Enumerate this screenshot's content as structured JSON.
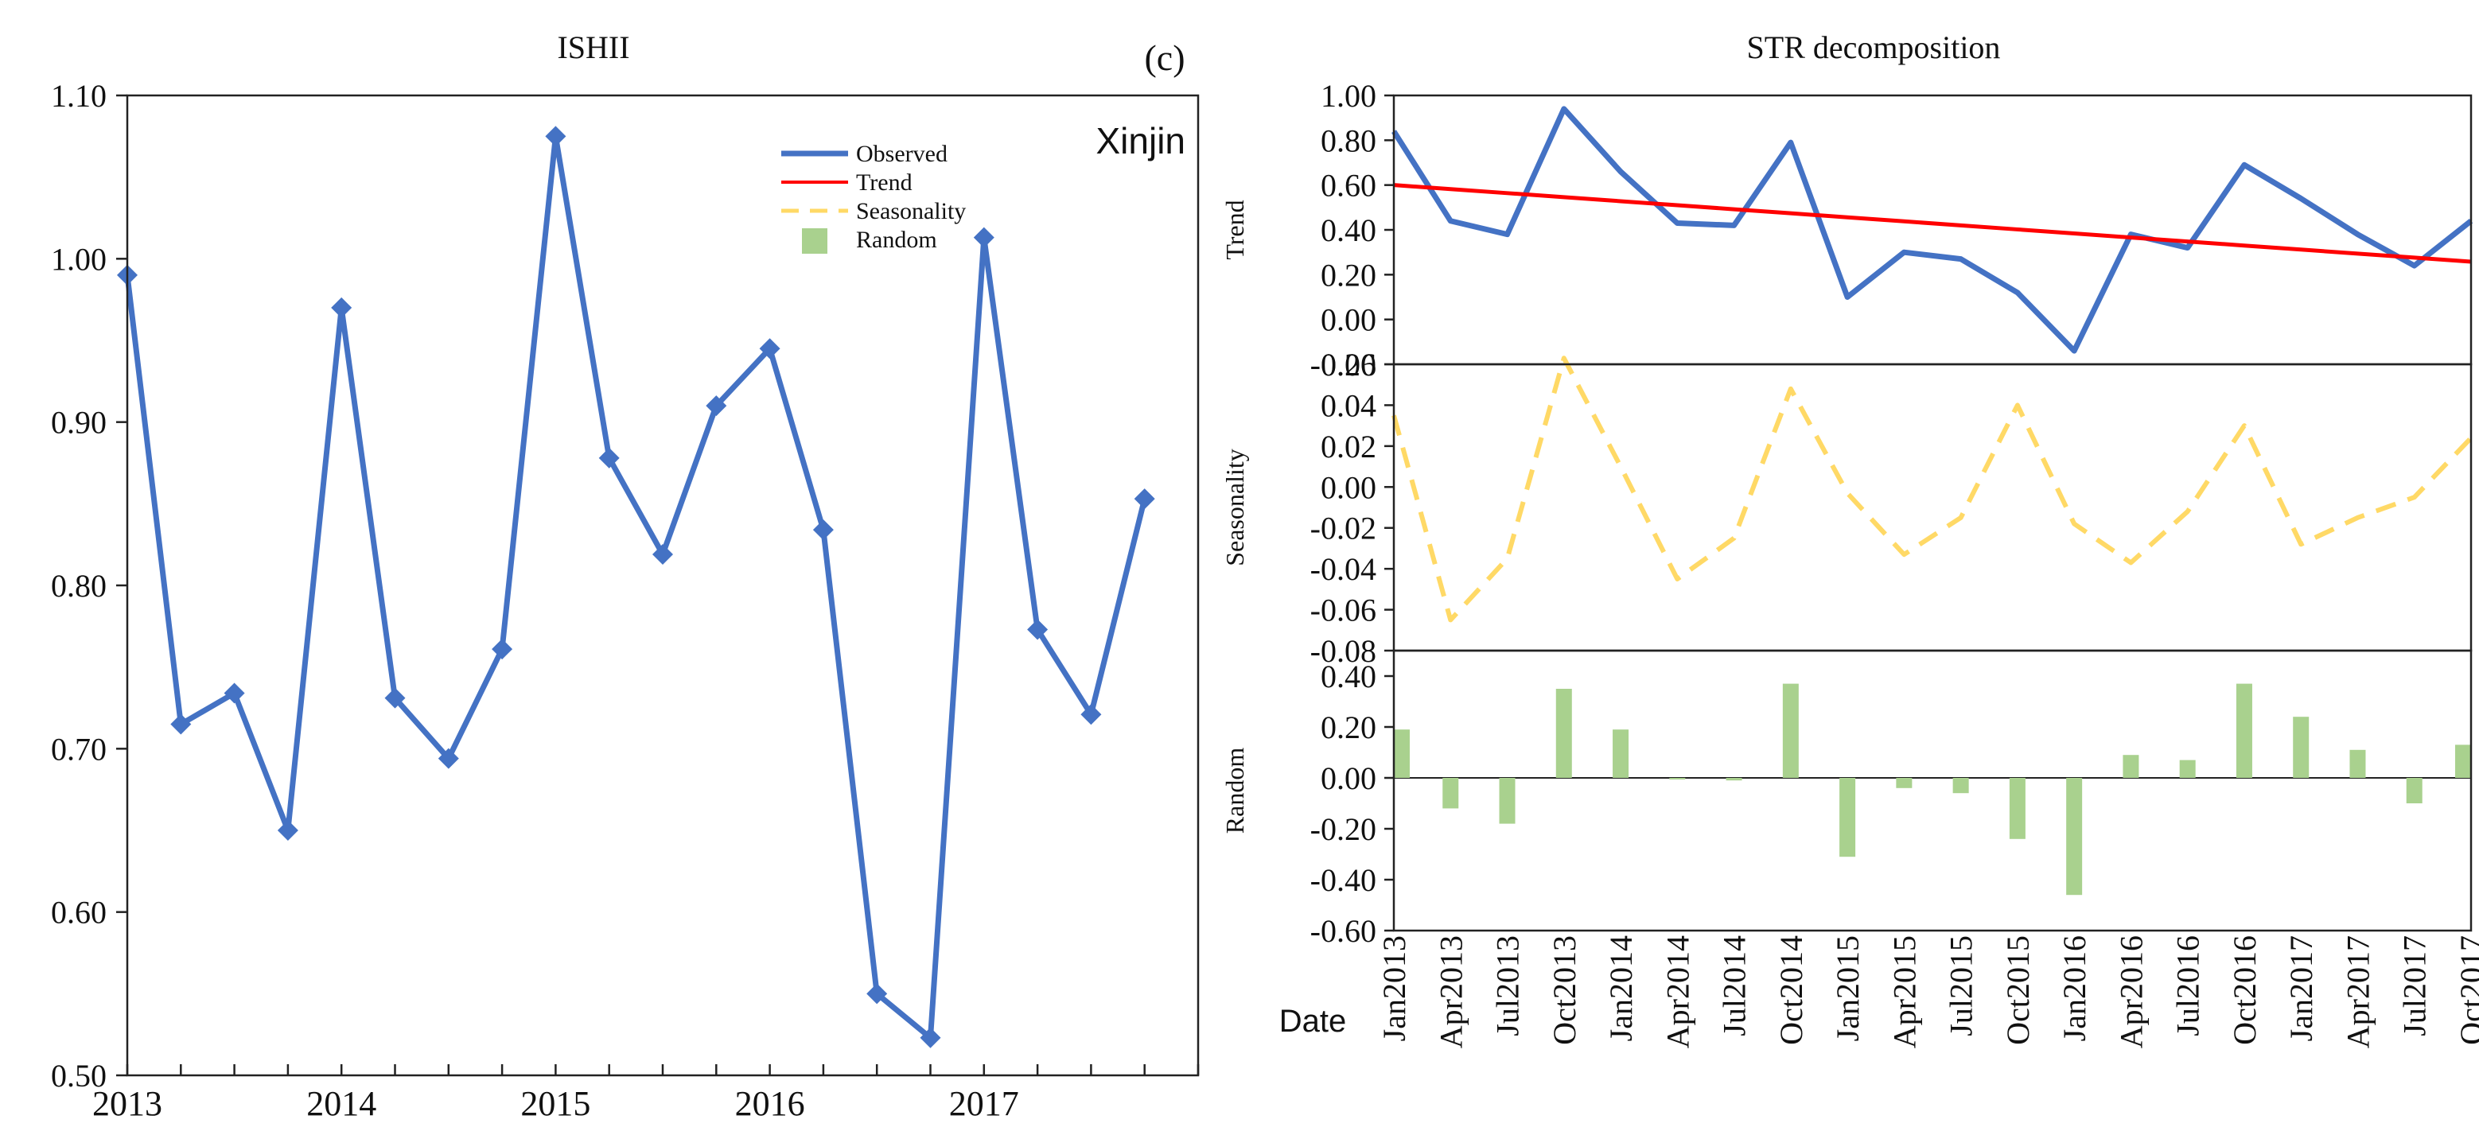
{
  "colors": {
    "observed": "#4472C4",
    "trend": "#FF0000",
    "seasonality": "#FFD966",
    "random": "#A9D18E",
    "panel_tag": "#E8212B",
    "axis": "#222222"
  },
  "chart_data": [
    {
      "id": "ishii",
      "type": "line",
      "title": "ISHII",
      "panel_tag": "(c)",
      "location_label": "Xinjin",
      "ylim": [
        0.5,
        1.1
      ],
      "yticks": [
        0.5,
        0.6,
        0.7,
        0.8,
        0.9,
        1.0,
        1.1
      ],
      "ytick_labels": [
        "0.50",
        "0.60",
        "0.70",
        "0.80",
        "0.90",
        "1.00",
        "1.10"
      ],
      "x_tick_labels": [
        "2013",
        "2014",
        "2015",
        "2016",
        "2017"
      ],
      "series": [
        {
          "name": "Observed",
          "marker": "diamond",
          "values": [
            0.99,
            0.715,
            0.734,
            0.65,
            0.97,
            0.731,
            0.694,
            0.761,
            1.075,
            0.878,
            0.819,
            0.91,
            0.945,
            0.834,
            0.55,
            0.523,
            1.013,
            0.773,
            0.721,
            0.853
          ]
        }
      ],
      "legend": [
        {
          "label": "Observed",
          "kind": "line"
        },
        {
          "label": "Trend",
          "kind": "line"
        },
        {
          "label": "Seasonality",
          "kind": "dashed"
        },
        {
          "label": "Random",
          "kind": "patch"
        }
      ]
    },
    {
      "id": "str",
      "type": "line",
      "title": "STR decomposition",
      "xlabel": "Date",
      "categories": [
        "Jan2013",
        "Apr2013",
        "Jul2013",
        "Oct2013",
        "Jan2014",
        "Apr2014",
        "Jul2014",
        "Oct2014",
        "Jan2015",
        "Apr2015",
        "Jul2015",
        "Oct2015",
        "Jan2016",
        "Apr2016",
        "Jul2016",
        "Oct2016",
        "Jan2017",
        "Apr2017",
        "Jul2017",
        "Oct2017"
      ],
      "panels": [
        {
          "ylabel": "Trend",
          "ylim": [
            -0.2,
            1.0
          ],
          "yticks": [
            -0.2,
            0.0,
            0.2,
            0.4,
            0.6,
            0.8,
            1.0
          ],
          "ytick_labels": [
            "-0.20",
            "0.00",
            "0.20",
            "0.40",
            "0.60",
            "0.80",
            "1.00"
          ],
          "series": [
            {
              "name": "Observed",
              "style": "solid",
              "values": [
                0.84,
                0.44,
                0.38,
                0.94,
                0.66,
                0.43,
                0.42,
                0.79,
                0.1,
                0.3,
                0.27,
                0.12,
                -0.14,
                0.38,
                0.32,
                0.69,
                0.54,
                0.38,
                0.24,
                0.44
              ]
            },
            {
              "name": "Trend",
              "style": "solid",
              "values": [
                0.6,
                0.582,
                0.564,
                0.546,
                0.528,
                0.51,
                0.492,
                0.474,
                0.456,
                0.438,
                0.42,
                0.402,
                0.384,
                0.366,
                0.348,
                0.33,
                0.312,
                0.294,
                0.276,
                0.258
              ]
            }
          ]
        },
        {
          "ylabel": "Seasonality",
          "ylim": [
            -0.08,
            0.06
          ],
          "yticks": [
            -0.08,
            -0.06,
            -0.04,
            -0.02,
            0.0,
            0.02,
            0.04,
            0.06
          ],
          "ytick_labels": [
            "-0.08",
            "-0.06",
            "-0.04",
            "-0.02",
            "0.00",
            "0.02",
            "0.04",
            "0.06"
          ],
          "series": [
            {
              "name": "Seasonality",
              "style": "dashed",
              "values": [
                0.035,
                -0.065,
                -0.035,
                0.063,
                0.01,
                -0.045,
                -0.025,
                0.048,
                -0.003,
                -0.033,
                -0.015,
                0.04,
                -0.018,
                -0.037,
                -0.012,
                0.03,
                -0.028,
                -0.015,
                -0.005,
                0.024
              ]
            }
          ]
        },
        {
          "ylabel": "Random",
          "ylim": [
            -0.6,
            0.5
          ],
          "yticks": [
            -0.6,
            -0.4,
            -0.2,
            0.0,
            0.2,
            0.4
          ],
          "ytick_labels": [
            "-0.60",
            "-0.40",
            "-0.20",
            "0.00",
            "0.20",
            "0.40"
          ],
          "series": [
            {
              "name": "Random",
              "style": "bar",
              "values": [
                0.19,
                -0.12,
                -0.18,
                0.35,
                0.19,
                0.0,
                -0.01,
                0.37,
                -0.31,
                -0.04,
                -0.06,
                -0.24,
                -0.46,
                0.09,
                0.07,
                0.37,
                0.24,
                0.11,
                -0.1,
                0.13
              ]
            }
          ]
        }
      ]
    }
  ]
}
